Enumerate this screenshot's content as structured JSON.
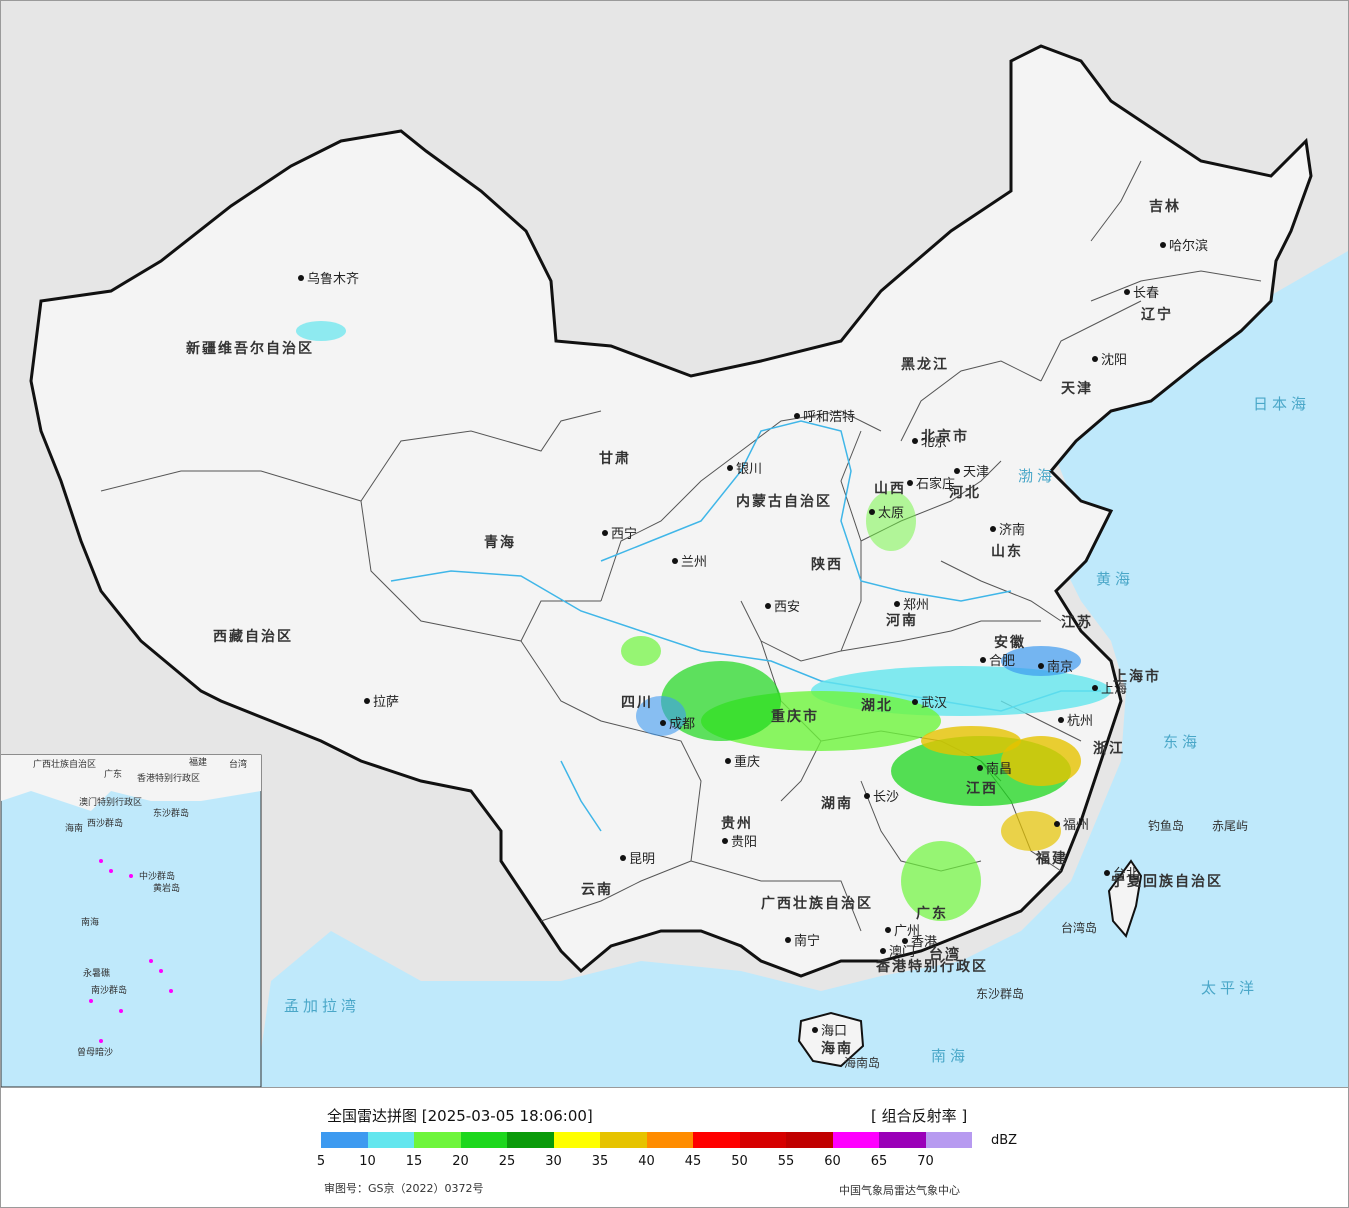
{
  "map": {
    "provinces": [
      "新疆维吾尔自治区",
      "西藏自治区",
      "青海",
      "甘肃",
      "四川",
      "云南",
      "贵州",
      "重庆市",
      "陕西",
      "山西",
      "河南",
      "湖北",
      "湖南",
      "广西壮族自治区",
      "广东",
      "海南",
      "江西",
      "福建",
      "浙江",
      "安徽",
      "江苏",
      "上海市",
      "山东",
      "河北",
      "北京市",
      "天津",
      "辽宁",
      "吉林",
      "黑龙江",
      "内蒙古自治区",
      "宁夏回族自治区",
      "台湾",
      "香港特别行政区",
      "澳门特别行政区"
    ],
    "cities": [
      "乌鲁木齐",
      "拉萨",
      "西宁",
      "兰州",
      "银川",
      "呼和浩特",
      "北京",
      "天津",
      "石家庄",
      "太原",
      "济南",
      "郑州",
      "西安",
      "成都",
      "重庆",
      "贵阳",
      "昆明",
      "南宁",
      "广州",
      "香港",
      "澳门",
      "海口",
      "长沙",
      "南昌",
      "武汉",
      "合肥",
      "南京",
      "上海",
      "杭州",
      "福州",
      "台北",
      "沈阳",
      "长春",
      "哈尔滨"
    ],
    "seas": [
      "日本海",
      "渤海",
      "黄海",
      "东海",
      "太平洋",
      "南海",
      "孟加拉湾"
    ],
    "islands": [
      "钓鱼岛",
      "赤尾屿",
      "台湾岛",
      "东沙群岛",
      "海南岛"
    ],
    "inset": {
      "labels": [
        "广西壮族自治区",
        "广东",
        "福建",
        "台湾",
        "海南",
        "香港特别行政区",
        "澳门特别行政区",
        "东沙群岛",
        "西沙群岛",
        "中沙群岛",
        "黄岩岛",
        "永暑礁",
        "南沙群岛",
        "曾母暗沙",
        "南海"
      ]
    },
    "colors": {
      "land": "#f2f2f2",
      "sea": "#bfe9fb",
      "foreign": "#e6e6e6",
      "water_lines": "#3fb6e8"
    }
  },
  "legend": {
    "title": "全国雷达拼图 [2025-03-05 18:06:00]",
    "product": "[ 组合反射率 ]",
    "unit": "dBZ",
    "ticks": [
      "5",
      "10",
      "15",
      "20",
      "25",
      "30",
      "35",
      "40",
      "45",
      "50",
      "55",
      "60",
      "65",
      "70"
    ],
    "colors": [
      "#3d9af0",
      "#63e6ee",
      "#6ef53c",
      "#1dd71d",
      "#0a9a0a",
      "#ffff00",
      "#e6c300",
      "#ff8c00",
      "#ff0000",
      "#d60000",
      "#c00000",
      "#ff00ff",
      "#9a00b8",
      "#b79af0"
    ],
    "review_no": "审图号：GS京（2022）0372号",
    "producer": "中国气象局雷达气象中心"
  }
}
